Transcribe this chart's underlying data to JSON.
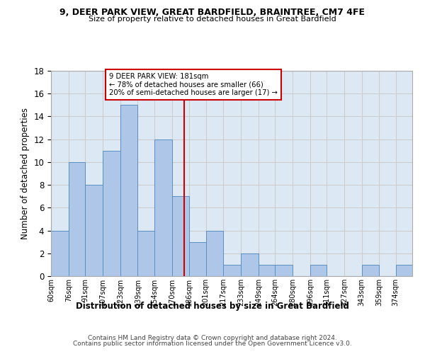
{
  "title1": "9, DEER PARK VIEW, GREAT BARDFIELD, BRAINTREE, CM7 4FE",
  "title2": "Size of property relative to detached houses in Great Bardfield",
  "xlabel": "Distribution of detached houses by size in Great Bardfield",
  "ylabel": "Number of detached properties",
  "bin_labels": [
    "60sqm",
    "76sqm",
    "91sqm",
    "107sqm",
    "123sqm",
    "139sqm",
    "154sqm",
    "170sqm",
    "186sqm",
    "201sqm",
    "217sqm",
    "233sqm",
    "249sqm",
    "264sqm",
    "280sqm",
    "296sqm",
    "311sqm",
    "327sqm",
    "343sqm",
    "359sqm",
    "374sqm"
  ],
  "bin_edges": [
    60,
    76,
    91,
    107,
    123,
    139,
    154,
    170,
    186,
    201,
    217,
    233,
    249,
    264,
    280,
    296,
    311,
    327,
    343,
    359,
    374,
    389
  ],
  "bar_heights": [
    4,
    10,
    8,
    11,
    15,
    4,
    12,
    7,
    3,
    4,
    1,
    2,
    1,
    1,
    0,
    1,
    0,
    0,
    1,
    0,
    1
  ],
  "bar_color": "#aec6e8",
  "bar_edge_color": "#5a8fc2",
  "property_size": 181,
  "vline_color": "#cc0000",
  "annotation_text": "9 DEER PARK VIEW: 181sqm\n← 78% of detached houses are smaller (66)\n20% of semi-detached houses are larger (17) →",
  "annotation_box_color": "#cc0000",
  "ylim": [
    0,
    18
  ],
  "yticks": [
    0,
    2,
    4,
    6,
    8,
    10,
    12,
    14,
    16,
    18
  ],
  "grid_color": "#cccccc",
  "bg_color": "#dce9f5",
  "footer1": "Contains HM Land Registry data © Crown copyright and database right 2024.",
  "footer2": "Contains public sector information licensed under the Open Government Licence v3.0."
}
